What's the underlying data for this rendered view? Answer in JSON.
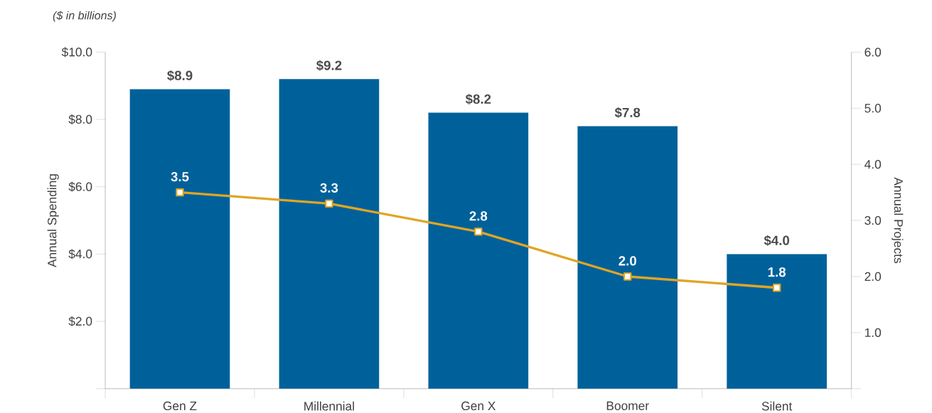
{
  "chart_data": {
    "type": "bar",
    "annotations": [
      "($ in billions)"
    ],
    "categories": [
      "Gen Z",
      "Millennial",
      "Gen X",
      "Boomer",
      "Silent"
    ],
    "ylabel": "Annual Spending",
    "y2label": "Annual Projects",
    "ylim": [
      0,
      10
    ],
    "yticks": [
      {
        "value": 0,
        "label": null
      },
      {
        "value": 2,
        "label": "$2.0"
      },
      {
        "value": 4,
        "label": "$4.0"
      },
      {
        "value": 6,
        "label": "$6.0"
      },
      {
        "value": 8,
        "label": "$8.0"
      },
      {
        "value": 10,
        "label": "$10.0"
      }
    ],
    "y2lim": [
      0,
      6
    ],
    "y2ticks": [
      {
        "value": 0,
        "label": null
      },
      {
        "value": 1,
        "label": "1.0"
      },
      {
        "value": 2,
        "label": "2.0"
      },
      {
        "value": 3,
        "label": "3.0"
      },
      {
        "value": 4,
        "label": "4.0"
      },
      {
        "value": 5,
        "label": "5.0"
      },
      {
        "value": 6,
        "label": "6.0"
      }
    ],
    "series": [
      {
        "color": "#00619a",
        "values": [
          8.9,
          9.2,
          8.2,
          7.8,
          4.0
        ],
        "value_labels": [
          "$8.9",
          "$9.2",
          "$8.2",
          "$7.8",
          "$4.0"
        ]
      },
      {
        "type": "line",
        "axis": "y2",
        "color": "#e0a526",
        "marker": "square",
        "line_style": "solid",
        "values": [
          3.5,
          3.3,
          2.8,
          2.0,
          1.8
        ],
        "value_labels": [
          "3.5",
          "3.3",
          "2.8",
          "2.0",
          "1.8"
        ]
      }
    ]
  }
}
